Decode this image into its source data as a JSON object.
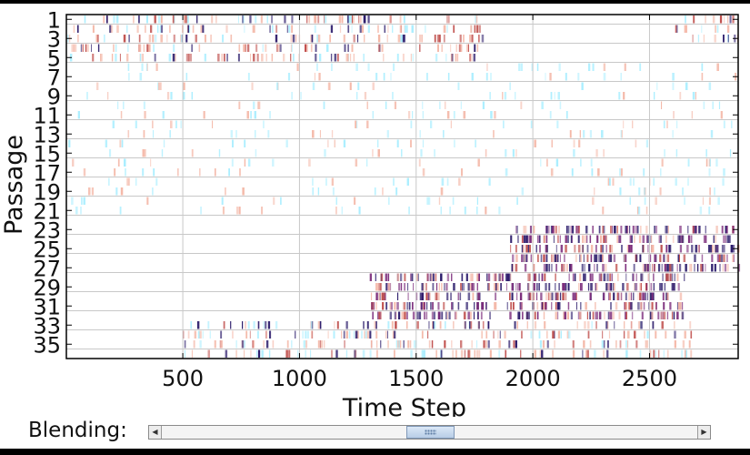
{
  "chart_data": {
    "type": "heatmap",
    "title": "",
    "xlabel": "Time Step",
    "ylabel": "Passage",
    "xlim": [
      1,
      2880
    ],
    "ylim": [
      1,
      36
    ],
    "x_ticks": [
      "500",
      "1000",
      "1500",
      "2000",
      "2500"
    ],
    "y_ticks": [
      "1",
      "3",
      "5",
      "7",
      "9",
      "11",
      "13",
      "15",
      "17",
      "19",
      "21",
      "23",
      "25",
      "27",
      "29",
      "31",
      "33",
      "35"
    ],
    "grid": true,
    "colormap": [
      "#ffffff",
      "#aaeeff",
      "#f4b8a8",
      "#c0504d",
      "#7a2a7a",
      "#2a1a6a"
    ],
    "activity_bands": [
      {
        "passages": [
          1,
          5
        ],
        "x_range": [
          1,
          1800
        ],
        "level": "medium"
      },
      {
        "passages": [
          1,
          3
        ],
        "x_range": [
          2600,
          2880
        ],
        "level": "medium"
      },
      {
        "passages": [
          6,
          21
        ],
        "x_range": [
          1,
          2880
        ],
        "level": "faint"
      },
      {
        "passages": [
          23,
          27
        ],
        "x_range": [
          1900,
          2880
        ],
        "level": "high"
      },
      {
        "passages": [
          28,
          32
        ],
        "x_range": [
          1300,
          2650
        ],
        "level": "high"
      },
      {
        "passages": [
          33,
          36
        ],
        "x_range": [
          500,
          2700
        ],
        "level": "medium"
      }
    ]
  },
  "controls": {
    "blending_label": "Blending:",
    "blending_value": 0.5
  },
  "colors": {
    "grid": "#c8c8c8",
    "frame": "#000000",
    "scroll_thumb": "#c5d7ec"
  }
}
